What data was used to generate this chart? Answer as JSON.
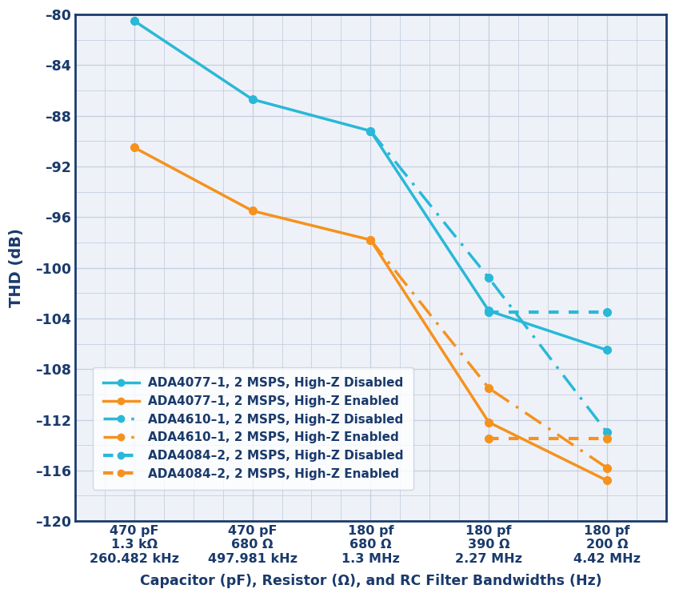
{
  "x_positions": [
    0,
    1,
    2,
    3,
    4
  ],
  "x_tick_labels": [
    "470 pF\n1.3 kΩ\n260.482 kHz",
    "470 pF\n680 Ω\n497.981 kHz",
    "180 pf\n680 Ω\n1.3 MHz",
    "180 pf\n390 Ω\n2.27 MHz",
    "180 pf\n200 Ω\n4.42 MHz"
  ],
  "series": [
    {
      "label": "ADA4077–1, 2 MSPS, High-Z Disabled",
      "color": "#29b8d8",
      "linestyle": "solid",
      "linewidth": 2.5,
      "marker": "o",
      "markersize": 7,
      "x": [
        0,
        1,
        2,
        3,
        4
      ],
      "y": [
        -80.5,
        -86.7,
        -89.2,
        -103.4,
        -106.5
      ]
    },
    {
      "label": "ADA4077–1, 2 MSPS, High-Z Enabled",
      "color": "#f5921e",
      "linestyle": "solid",
      "linewidth": 2.5,
      "marker": "o",
      "markersize": 7,
      "x": [
        0,
        1,
        2,
        3,
        4
      ],
      "y": [
        -90.5,
        -95.5,
        -97.8,
        -112.2,
        -116.8
      ]
    },
    {
      "label": "ADA4610–1, 2 MSPS, High-Z Disabled",
      "color": "#29b8d8",
      "linestyle": "dashdot",
      "linewidth": 2.5,
      "marker": "o",
      "markersize": 7,
      "x": [
        2,
        3,
        4
      ],
      "y": [
        -89.2,
        -100.8,
        -113.0
      ]
    },
    {
      "label": "ADA4610–1, 2 MSPS, High-Z Enabled",
      "color": "#f5921e",
      "linestyle": "dashdot",
      "linewidth": 2.5,
      "marker": "o",
      "markersize": 7,
      "x": [
        2,
        3,
        4
      ],
      "y": [
        -97.8,
        -109.5,
        -115.8
      ]
    },
    {
      "label": "ADA4084–2, 2 MSPS, High-Z Disabled",
      "color": "#29b8d8",
      "linestyle": "dotted",
      "linewidth": 3.0,
      "marker": "o",
      "markersize": 7,
      "x": [
        3,
        4
      ],
      "y": [
        -103.5,
        -103.5
      ]
    },
    {
      "label": "ADA4084–2, 2 MSPS, High-Z Enabled",
      "color": "#f5921e",
      "linestyle": "dotted",
      "linewidth": 3.0,
      "marker": "o",
      "markersize": 7,
      "x": [
        3,
        4
      ],
      "y": [
        -113.5,
        -113.5
      ]
    }
  ],
  "ylabel": "THD (dB)",
  "xlabel": "Capacitor (pF), Resistor (Ω), and RC Filter Bandwidths (Hz)",
  "ylim": [
    -120,
    -80
  ],
  "yticks": [
    -80,
    -84,
    -88,
    -92,
    -96,
    -100,
    -104,
    -108,
    -112,
    -116,
    -120
  ],
  "ytick_labels": [
    "–80",
    "–84",
    "–88",
    "–92",
    "–96",
    "–100",
    "–104",
    "–108",
    "–112",
    "–116",
    "–120"
  ],
  "plot_bg_color": "#eef2f8",
  "fig_bg_color": "#ffffff",
  "grid_color": "#c5cfe0",
  "axis_color": "#1a3a6b",
  "legend_text_color": "#1a3a6b"
}
